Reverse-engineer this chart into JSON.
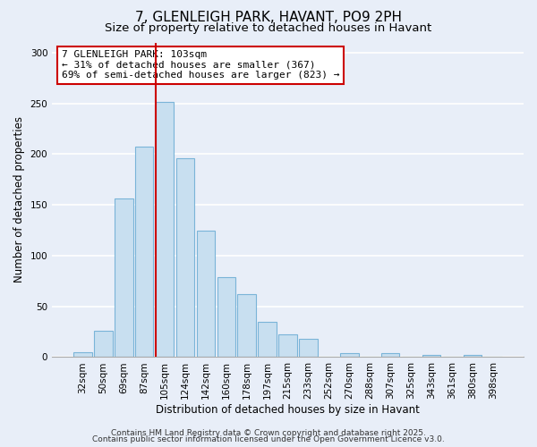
{
  "title": "7, GLENLEIGH PARK, HAVANT, PO9 2PH",
  "subtitle": "Size of property relative to detached houses in Havant",
  "xlabel": "Distribution of detached houses by size in Havant",
  "ylabel": "Number of detached properties",
  "bar_labels": [
    "32sqm",
    "50sqm",
    "69sqm",
    "87sqm",
    "105sqm",
    "124sqm",
    "142sqm",
    "160sqm",
    "178sqm",
    "197sqm",
    "215sqm",
    "233sqm",
    "252sqm",
    "270sqm",
    "288sqm",
    "307sqm",
    "325sqm",
    "343sqm",
    "361sqm",
    "380sqm",
    "398sqm"
  ],
  "bar_values": [
    5,
    26,
    156,
    207,
    251,
    196,
    125,
    79,
    62,
    35,
    22,
    18,
    0,
    4,
    0,
    4,
    0,
    2,
    0,
    2,
    0
  ],
  "bar_color": "#c8dff0",
  "bar_edge_color": "#7ab4d8",
  "vline_color": "#cc0000",
  "annotation_line1": "7 GLENLEIGH PARK: 103sqm",
  "annotation_line2": "← 31% of detached houses are smaller (367)",
  "annotation_line3": "69% of semi-detached houses are larger (823) →",
  "annotation_box_color": "#ffffff",
  "annotation_box_edge": "#cc0000",
  "ylim": [
    0,
    310
  ],
  "yticks": [
    0,
    50,
    100,
    150,
    200,
    250,
    300
  ],
  "footer1": "Contains HM Land Registry data © Crown copyright and database right 2025.",
  "footer2": "Contains public sector information licensed under the Open Government Licence v3.0.",
  "background_color": "#e8eef8",
  "grid_color": "#ffffff",
  "title_fontsize": 11,
  "subtitle_fontsize": 9.5,
  "axis_label_fontsize": 8.5,
  "tick_fontsize": 7.5,
  "annotation_fontsize": 8,
  "footer_fontsize": 6.5
}
